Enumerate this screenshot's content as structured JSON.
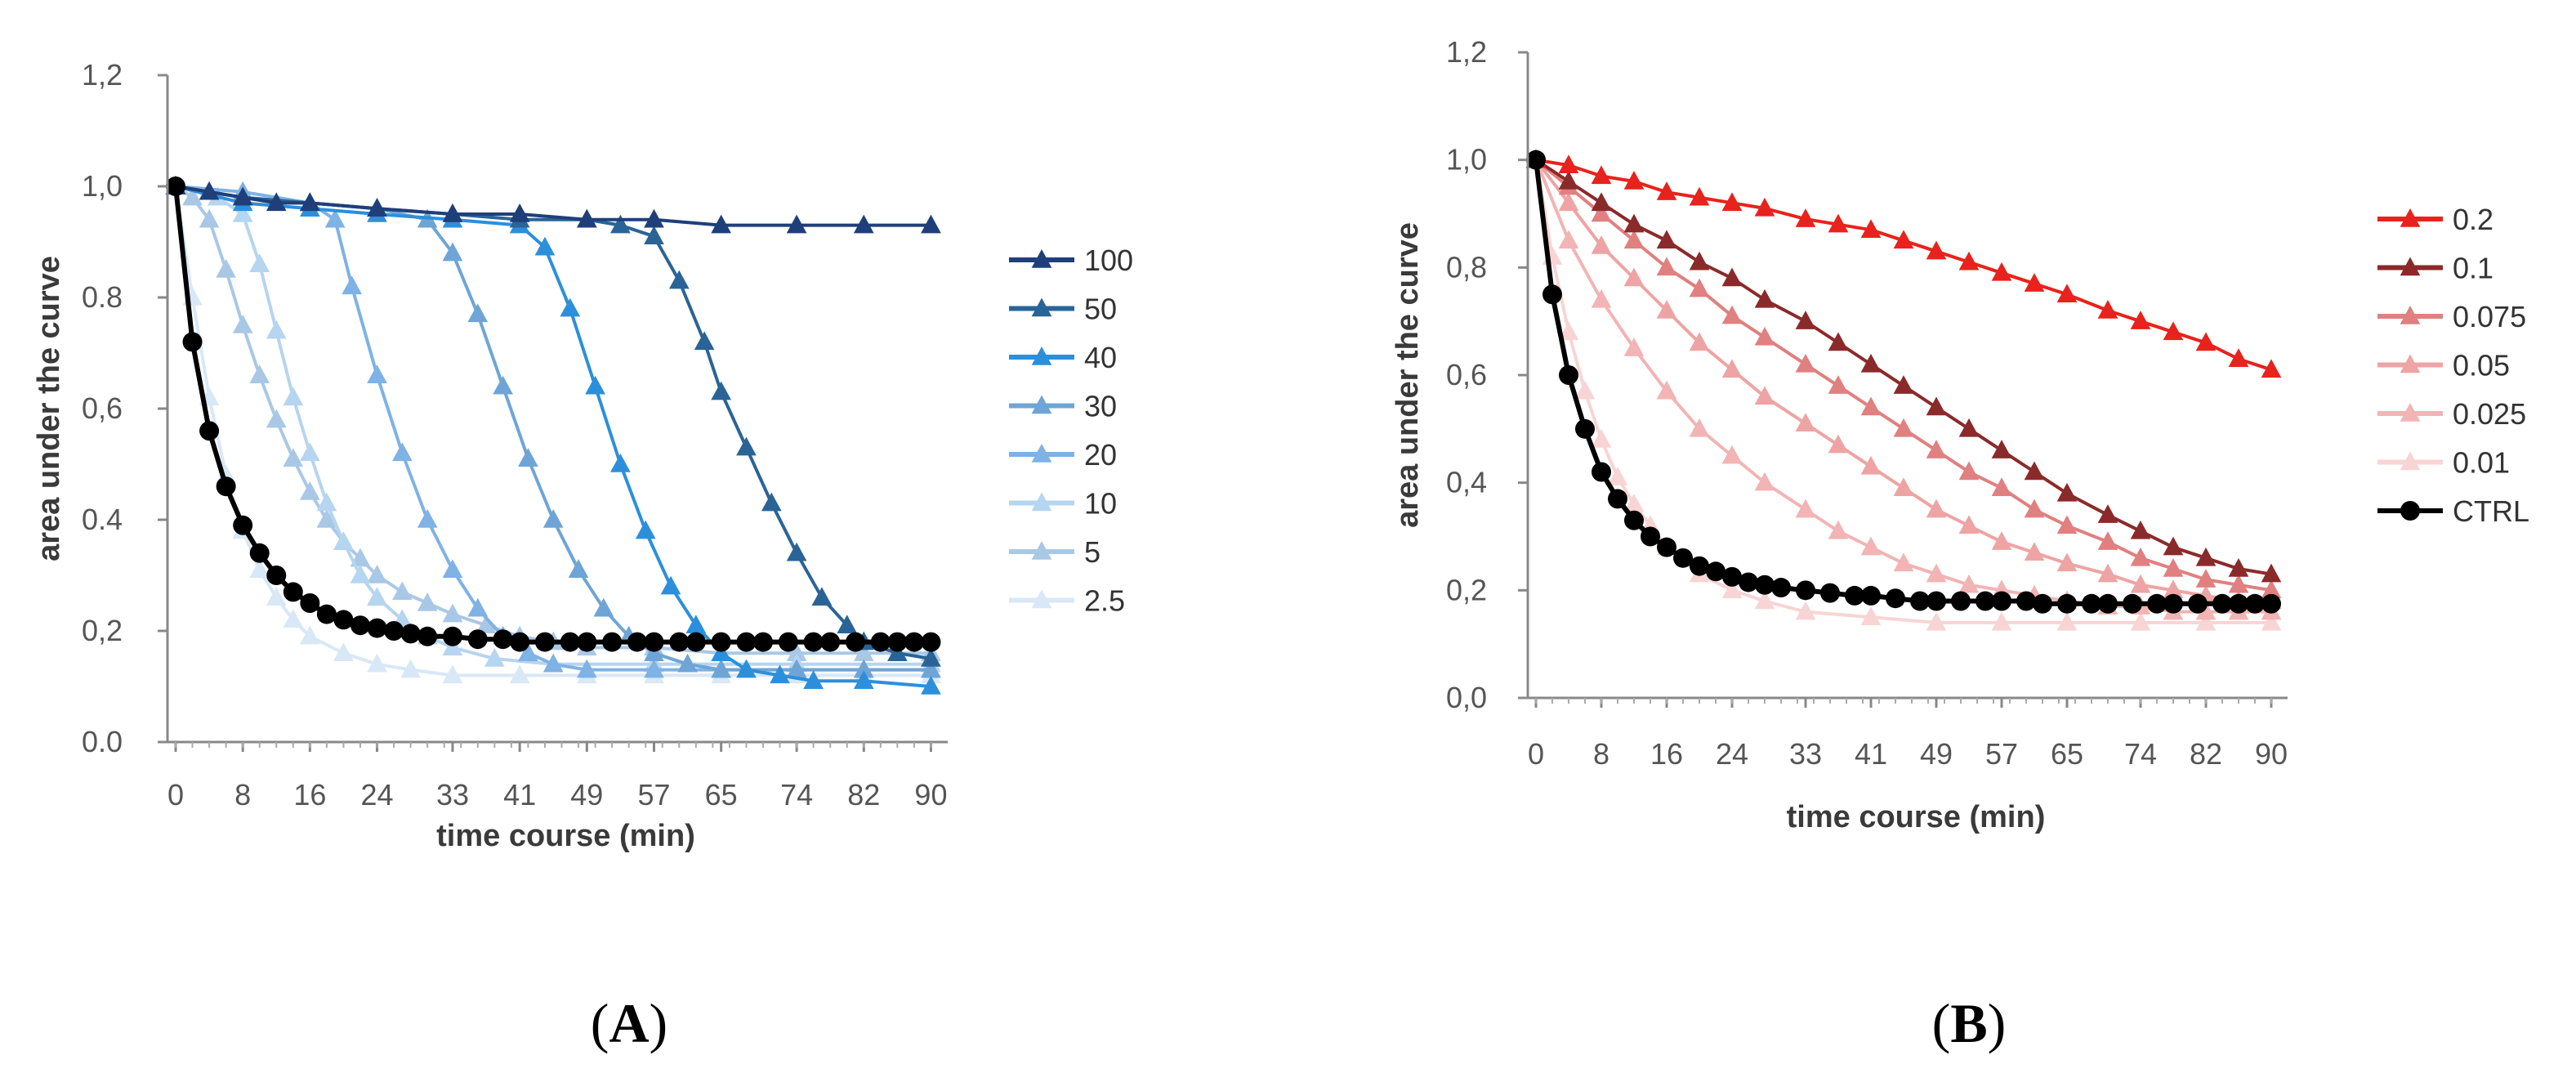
{
  "panels": [
    {
      "label_open": "(",
      "label_letter": "A",
      "label_close": ")",
      "chart_data": {
        "type": "line",
        "title": "",
        "xlabel": "time course (min)",
        "ylabel": "area under the curve",
        "ylim": [
          0,
          1.2
        ],
        "y_ticks": [
          "0.0",
          "0,2",
          "0.4",
          "0,6",
          "0.8",
          "1,0",
          "1,2"
        ],
        "x_ticks": [
          "0",
          "8",
          "16",
          "24",
          "33",
          "41",
          "49",
          "57",
          "65",
          "74",
          "82",
          "90"
        ],
        "xlim": [
          0,
          92
        ],
        "legend_position": "right",
        "series": [
          {
            "name": "100",
            "color": "#1f3f7a",
            "marker": "triangle",
            "x": [
              0,
              4,
              8,
              12,
              16,
              24,
              33,
              41,
              49,
              57,
              65,
              74,
              82,
              90
            ],
            "values": [
              1.0,
              0.99,
              0.98,
              0.97,
              0.97,
              0.96,
              0.95,
              0.95,
              0.94,
              0.94,
              0.93,
              0.93,
              0.93,
              0.93
            ]
          },
          {
            "name": "50",
            "color": "#2a6496",
            "marker": "triangle",
            "x": [
              0,
              8,
              16,
              24,
              33,
              41,
              49,
              53,
              57,
              60,
              63,
              65,
              68,
              71,
              74,
              77,
              80,
              82,
              86,
              90
            ],
            "values": [
              1.0,
              0.98,
              0.97,
              0.96,
              0.95,
              0.94,
              0.94,
              0.93,
              0.91,
              0.83,
              0.72,
              0.63,
              0.53,
              0.43,
              0.34,
              0.26,
              0.21,
              0.18,
              0.16,
              0.15
            ]
          },
          {
            "name": "40",
            "color": "#2c8fdb",
            "marker": "triangle",
            "x": [
              0,
              8,
              16,
              24,
              33,
              41,
              44,
              47,
              50,
              53,
              56,
              59,
              62,
              65,
              68,
              72,
              76,
              82,
              90
            ],
            "values": [
              1.0,
              0.97,
              0.96,
              0.95,
              0.94,
              0.93,
              0.89,
              0.78,
              0.64,
              0.5,
              0.38,
              0.28,
              0.21,
              0.16,
              0.13,
              0.12,
              0.11,
              0.11,
              0.1
            ]
          },
          {
            "name": "30",
            "color": "#6fa5d6",
            "marker": "triangle",
            "x": [
              0,
              8,
              16,
              24,
              30,
              33,
              36,
              39,
              42,
              45,
              48,
              51,
              54,
              57,
              61,
              65,
              74,
              82,
              90
            ],
            "values": [
              1.0,
              0.98,
              0.97,
              0.96,
              0.94,
              0.88,
              0.77,
              0.64,
              0.51,
              0.4,
              0.31,
              0.24,
              0.19,
              0.16,
              0.14,
              0.13,
              0.13,
              0.13,
              0.13
            ]
          },
          {
            "name": "20",
            "color": "#7fb2e5",
            "marker": "triangle",
            "x": [
              0,
              8,
              16,
              19,
              21,
              24,
              27,
              30,
              33,
              36,
              39,
              42,
              45,
              49,
              57,
              65,
              74,
              82,
              90
            ],
            "values": [
              1.0,
              0.99,
              0.97,
              0.94,
              0.82,
              0.66,
              0.52,
              0.4,
              0.31,
              0.24,
              0.19,
              0.16,
              0.14,
              0.13,
              0.13,
              0.13,
              0.13,
              0.13,
              0.13
            ]
          },
          {
            "name": "10",
            "color": "#b5d5f0",
            "marker": "triangle",
            "x": [
              0,
              5,
              8,
              10,
              12,
              14,
              16,
              18,
              20,
              22,
              24,
              27,
              30,
              33,
              38,
              45,
              57,
              74,
              90
            ],
            "values": [
              1.0,
              0.98,
              0.95,
              0.86,
              0.74,
              0.62,
              0.52,
              0.43,
              0.36,
              0.3,
              0.26,
              0.22,
              0.19,
              0.17,
              0.15,
              0.14,
              0.14,
              0.14,
              0.14
            ]
          },
          {
            "name": "5",
            "color": "#a9c8e6",
            "marker": "triangle",
            "x": [
              0,
              2,
              4,
              6,
              8,
              10,
              12,
              14,
              16,
              18,
              20,
              22,
              24,
              27,
              30,
              33,
              37,
              41,
              45,
              49,
              57,
              65,
              74,
              82,
              90
            ],
            "values": [
              1.0,
              0.98,
              0.94,
              0.85,
              0.75,
              0.66,
              0.58,
              0.51,
              0.45,
              0.4,
              0.36,
              0.33,
              0.3,
              0.27,
              0.25,
              0.23,
              0.21,
              0.19,
              0.18,
              0.17,
              0.17,
              0.16,
              0.16,
              0.16,
              0.16
            ]
          },
          {
            "name": "2.5",
            "color": "#d8e8f6",
            "marker": "triangle",
            "x": [
              0,
              2,
              4,
              6,
              8,
              10,
              12,
              14,
              16,
              20,
              24,
              28,
              33,
              41,
              49,
              57,
              65,
              74,
              82,
              90
            ],
            "values": [
              1.0,
              0.8,
              0.62,
              0.48,
              0.38,
              0.31,
              0.26,
              0.22,
              0.19,
              0.16,
              0.14,
              0.13,
              0.12,
              0.12,
              0.12,
              0.12,
              0.12,
              0.12,
              0.12,
              0.12
            ]
          },
          {
            "name": "",
            "color": "#000000",
            "marker": "circle",
            "x": [
              0,
              2,
              4,
              6,
              8,
              10,
              12,
              14,
              16,
              18,
              20,
              22,
              24,
              26,
              28,
              30,
              33,
              36,
              39,
              41,
              44,
              47,
              49,
              52,
              55,
              57,
              60,
              62,
              65,
              68,
              70,
              73,
              76,
              78,
              81,
              84,
              86,
              88,
              90
            ],
            "values": [
              1.0,
              0.72,
              0.56,
              0.46,
              0.39,
              0.34,
              0.3,
              0.27,
              0.25,
              0.23,
              0.22,
              0.21,
              0.205,
              0.2,
              0.195,
              0.19,
              0.19,
              0.185,
              0.185,
              0.18,
              0.18,
              0.18,
              0.18,
              0.18,
              0.18,
              0.18,
              0.18,
              0.18,
              0.18,
              0.18,
              0.18,
              0.18,
              0.18,
              0.18,
              0.18,
              0.18,
              0.18,
              0.18,
              0.18
            ]
          }
        ]
      }
    },
    {
      "label_open": "(",
      "label_letter": "B",
      "label_close": ")",
      "chart_data": {
        "type": "line",
        "title": "",
        "xlabel": "time course (min)",
        "ylabel": "area under the curve",
        "ylim": [
          0,
          1.2
        ],
        "y_ticks": [
          "0,0",
          "0,2",
          "0,4",
          "0,6",
          "0,8",
          "1,0",
          "1,2"
        ],
        "x_ticks": [
          "0",
          "8",
          "16",
          "24",
          "33",
          "41",
          "49",
          "57",
          "65",
          "74",
          "82",
          "90"
        ],
        "xlim": [
          0,
          92
        ],
        "legend_position": "right",
        "series": [
          {
            "name": "0.2",
            "color": "#e8221c",
            "marker": "triangle",
            "x": [
              0,
              4,
              8,
              12,
              16,
              20,
              24,
              28,
              33,
              37,
              41,
              45,
              49,
              53,
              57,
              61,
              65,
              70,
              74,
              78,
              82,
              86,
              90
            ],
            "values": [
              1.0,
              0.99,
              0.97,
              0.96,
              0.94,
              0.93,
              0.92,
              0.91,
              0.89,
              0.88,
              0.87,
              0.85,
              0.83,
              0.81,
              0.79,
              0.77,
              0.75,
              0.72,
              0.7,
              0.68,
              0.66,
              0.63,
              0.61
            ]
          },
          {
            "name": "0.1",
            "color": "#8b2a2a",
            "marker": "triangle",
            "x": [
              0,
              4,
              8,
              12,
              16,
              20,
              24,
              28,
              33,
              37,
              41,
              45,
              49,
              53,
              57,
              61,
              65,
              70,
              74,
              78,
              82,
              86,
              90
            ],
            "values": [
              1.0,
              0.96,
              0.92,
              0.88,
              0.85,
              0.81,
              0.78,
              0.74,
              0.7,
              0.66,
              0.62,
              0.58,
              0.54,
              0.5,
              0.46,
              0.42,
              0.38,
              0.34,
              0.31,
              0.28,
              0.26,
              0.24,
              0.23
            ]
          },
          {
            "name": "0.075",
            "color": "#e08080",
            "marker": "triangle",
            "x": [
              0,
              4,
              8,
              12,
              16,
              20,
              24,
              28,
              33,
              37,
              41,
              45,
              49,
              53,
              57,
              61,
              65,
              70,
              74,
              78,
              82,
              86,
              90
            ],
            "values": [
              1.0,
              0.95,
              0.9,
              0.85,
              0.8,
              0.76,
              0.71,
              0.67,
              0.62,
              0.58,
              0.54,
              0.5,
              0.46,
              0.42,
              0.39,
              0.35,
              0.32,
              0.29,
              0.26,
              0.24,
              0.22,
              0.21,
              0.2
            ]
          },
          {
            "name": "0.05",
            "color": "#eea4a4",
            "marker": "triangle",
            "x": [
              0,
              4,
              8,
              12,
              16,
              20,
              24,
              28,
              33,
              37,
              41,
              45,
              49,
              53,
              57,
              61,
              65,
              70,
              74,
              78,
              82,
              86,
              90
            ],
            "values": [
              1.0,
              0.92,
              0.84,
              0.78,
              0.72,
              0.66,
              0.61,
              0.56,
              0.51,
              0.47,
              0.43,
              0.39,
              0.35,
              0.32,
              0.29,
              0.27,
              0.25,
              0.23,
              0.21,
              0.2,
              0.19,
              0.18,
              0.18
            ]
          },
          {
            "name": "0.025",
            "color": "#f2b4b4",
            "marker": "triangle",
            "x": [
              0,
              4,
              8,
              12,
              16,
              20,
              24,
              28,
              33,
              37,
              41,
              45,
              49,
              53,
              57,
              61,
              65,
              70,
              74,
              78,
              82,
              86,
              90
            ],
            "values": [
              1.0,
              0.85,
              0.74,
              0.65,
              0.57,
              0.5,
              0.45,
              0.4,
              0.35,
              0.31,
              0.28,
              0.25,
              0.23,
              0.21,
              0.2,
              0.19,
              0.18,
              0.17,
              0.17,
              0.16,
              0.16,
              0.16,
              0.16
            ]
          },
          {
            "name": "0.01",
            "color": "#f9d4d4",
            "marker": "triangle",
            "x": [
              0,
              2,
              4,
              6,
              8,
              10,
              12,
              14,
              16,
              20,
              24,
              28,
              33,
              41,
              49,
              57,
              65,
              74,
              82,
              90
            ],
            "values": [
              1.0,
              0.82,
              0.68,
              0.57,
              0.48,
              0.41,
              0.36,
              0.32,
              0.28,
              0.23,
              0.2,
              0.18,
              0.16,
              0.15,
              0.14,
              0.14,
              0.14,
              0.14,
              0.14,
              0.14
            ]
          },
          {
            "name": "CTRL",
            "color": "#000000",
            "marker": "circle",
            "x": [
              0,
              2,
              4,
              6,
              8,
              10,
              12,
              14,
              16,
              18,
              20,
              22,
              24,
              26,
              28,
              30,
              33,
              36,
              39,
              41,
              44,
              47,
              49,
              52,
              55,
              57,
              60,
              62,
              65,
              68,
              70,
              73,
              76,
              78,
              81,
              84,
              86,
              88,
              90
            ],
            "values": [
              1.0,
              0.75,
              0.6,
              0.5,
              0.42,
              0.37,
              0.33,
              0.3,
              0.28,
              0.26,
              0.245,
              0.235,
              0.225,
              0.215,
              0.21,
              0.205,
              0.2,
              0.195,
              0.19,
              0.19,
              0.185,
              0.18,
              0.18,
              0.18,
              0.18,
              0.18,
              0.18,
              0.175,
              0.175,
              0.175,
              0.175,
              0.175,
              0.175,
              0.175,
              0.175,
              0.175,
              0.175,
              0.175,
              0.175
            ]
          }
        ]
      }
    }
  ]
}
